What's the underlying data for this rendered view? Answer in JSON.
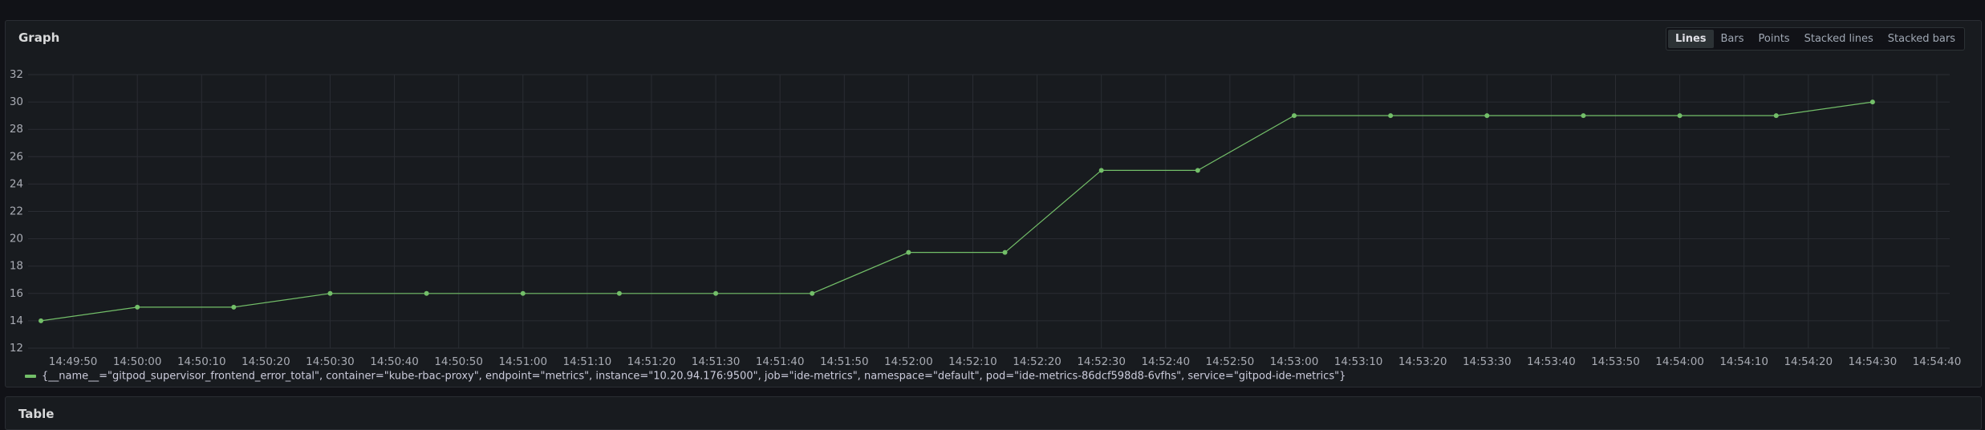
{
  "panel_title": "Graph",
  "view_buttons": [
    "Lines",
    "Bars",
    "Points",
    "Stacked lines",
    "Stacked bars"
  ],
  "active_button": "Lines",
  "next_panel_title": "Table",
  "chart_data": {
    "type": "line",
    "x": [
      "14:49:45",
      "14:50:00",
      "14:50:15",
      "14:50:30",
      "14:50:45",
      "14:51:00",
      "14:51:15",
      "14:51:30",
      "14:51:45",
      "14:52:00",
      "14:52:15",
      "14:52:30",
      "14:52:45",
      "14:53:00",
      "14:53:15",
      "14:53:30",
      "14:53:45",
      "14:54:00",
      "14:54:15",
      "14:54:30"
    ],
    "series": [
      {
        "name": "{__name__=\"gitpod_supervisor_frontend_error_total\", container=\"kube-rbac-proxy\", endpoint=\"metrics\", instance=\"10.20.94.176:9500\", job=\"ide-metrics\", namespace=\"default\", pod=\"ide-metrics-86dcf598d8-6vfhs\", service=\"gitpod-ide-metrics\"}",
        "color": "#73bf69",
        "values": [
          14,
          15,
          15,
          16,
          16,
          16,
          16,
          16,
          16,
          19,
          19,
          25,
          25,
          29,
          29,
          29,
          29,
          29,
          29,
          30
        ]
      }
    ],
    "xlim": [
      "14:49:43",
      "14:54:42"
    ],
    "xticks": [
      "14:49:50",
      "14:50:00",
      "14:50:10",
      "14:50:20",
      "14:50:30",
      "14:50:40",
      "14:50:50",
      "14:51:00",
      "14:51:10",
      "14:51:20",
      "14:51:30",
      "14:51:40",
      "14:51:50",
      "14:52:00",
      "14:52:10",
      "14:52:20",
      "14:52:30",
      "14:52:40",
      "14:52:50",
      "14:53:00",
      "14:53:10",
      "14:53:20",
      "14:53:30",
      "14:53:40",
      "14:53:50",
      "14:54:00",
      "14:54:10",
      "14:54:20",
      "14:54:30",
      "14:54:40"
    ],
    "ylim": [
      12,
      32
    ],
    "yticks": [
      12,
      14,
      16,
      18,
      20,
      22,
      24,
      26,
      28,
      30,
      32
    ],
    "grid": true
  }
}
